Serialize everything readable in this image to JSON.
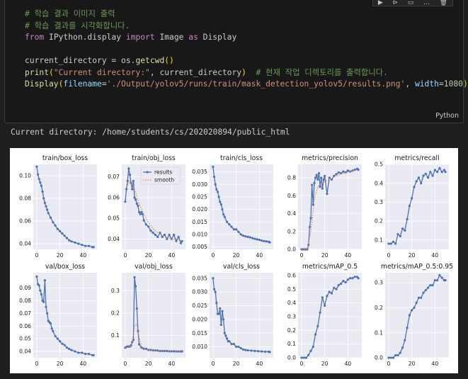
{
  "toolbar": {
    "icons": [
      "run-by-line-icon",
      "run-below-icon",
      "split-cell-icon",
      "more-icon",
      "delete-icon"
    ],
    "glyphs": [
      "▶",
      "⊳",
      "▭",
      "…",
      "🗑"
    ]
  },
  "cell": {
    "language": "Python",
    "code": {
      "l1": "# 학습 결과 이미지 출력",
      "l2": "# 학습 결과를 시각화합니다.",
      "l3": {
        "kw1": "from",
        "mod": " IPython.display ",
        "kw2": "import",
        "name1": " Image ",
        "kw3": "as",
        "name2": " Display"
      },
      "l5": {
        "a": "current_directory = os.",
        "fn": "getcwd",
        "p": "()"
      },
      "l6": {
        "fn": "print",
        "open": "(",
        "str": "\"Current directory:\"",
        "mid": ", current_directory",
        "close": ")",
        "sp": "  ",
        "com": "# 현재 작업 디렉토리를 출력합니다."
      },
      "l7": {
        "fn": "Display",
        "open": "(",
        "k1": "filename",
        "eq1": "=",
        "str": "'./Output/yolov5/runs/train/mask_detection_yolov5/results.png'",
        "comma": ", ",
        "k2": "width",
        "eq2": "=",
        "num": "1080",
        "close": ")"
      }
    }
  },
  "output": {
    "text": "Current directory: /home/students/cs/202020894/public_html"
  },
  "results_figure": {
    "colors": {
      "results": "#4c72b0",
      "smooth": "#dd8452",
      "grid": "#ffffff",
      "panel": "#eaeaf2"
    },
    "legend": {
      "results": "results",
      "smooth": "smooth"
    },
    "chart_data": [
      {
        "type": "line",
        "title": "train/box_loss",
        "ylim": [
          0.035,
          0.11
        ],
        "yticks": [
          0.04,
          0.06,
          0.08,
          0.1
        ],
        "series": [
          {
            "name": "results",
            "x": [
              0,
              1,
              2,
              3,
              4,
              5,
              6,
              7,
              8,
              9,
              10,
              12,
              14,
              16,
              18,
              20,
              22,
              24,
              26,
              28,
              30,
              33,
              36,
              39,
              42,
              45,
              48,
              49
            ],
            "values": [
              0.108,
              0.101,
              0.097,
              0.094,
              0.091,
              0.086,
              0.08,
              0.076,
              0.073,
              0.07,
              0.067,
              0.063,
              0.059,
              0.056,
              0.053,
              0.051,
              0.049,
              0.047,
              0.045,
              0.043,
              0.042,
              0.041,
              0.04,
              0.039,
              0.038,
              0.038,
              0.037,
              0.037
            ]
          }
        ]
      },
      {
        "type": "line",
        "title": "train/obj_loss",
        "ylim": [
          0.035,
          0.076
        ],
        "yticks": [
          0.04,
          0.05,
          0.06,
          0.07
        ],
        "series": [
          {
            "name": "results",
            "x": [
              0,
              1,
              2,
              3,
              4,
              5,
              6,
              7,
              8,
              9,
              10,
              11,
              12,
              13,
              14,
              15,
              16,
              18,
              20,
              22,
              24,
              26,
              28,
              30,
              32,
              34,
              36,
              38,
              40,
              42,
              44,
              46,
              48,
              49
            ],
            "values": [
              0.058,
              0.064,
              0.068,
              0.074,
              0.071,
              0.067,
              0.064,
              0.068,
              0.06,
              0.059,
              0.057,
              0.056,
              0.053,
              0.052,
              0.053,
              0.052,
              0.049,
              0.047,
              0.046,
              0.044,
              0.043,
              0.042,
              0.041,
              0.043,
              0.041,
              0.042,
              0.04,
              0.042,
              0.04,
              0.042,
              0.039,
              0.041,
              0.038,
              0.039
            ]
          },
          {
            "name": "smooth",
            "x": [
              0,
              4,
              8,
              12,
              16,
              20,
              24,
              28,
              32,
              36,
              40,
              44,
              49
            ],
            "values": [
              0.064,
              0.068,
              0.064,
              0.057,
              0.052,
              0.048,
              0.045,
              0.043,
              0.042,
              0.041,
              0.04,
              0.04,
              0.039
            ]
          }
        ]
      },
      {
        "type": "line",
        "title": "train/cls_loss",
        "ylim": [
          0.004,
          0.038
        ],
        "yticks": [
          0.005,
          0.01,
          0.015,
          0.02,
          0.025,
          0.03,
          0.035
        ],
        "series": [
          {
            "name": "results",
            "x": [
              0,
              1,
              2,
              3,
              4,
              5,
              6,
              7,
              8,
              9,
              10,
              12,
              14,
              16,
              18,
              20,
              22,
              24,
              26,
              28,
              30,
              32,
              34,
              36,
              38,
              40,
              42,
              44,
              46,
              48,
              49
            ],
            "values": [
              0.037,
              0.033,
              0.03,
              0.028,
              0.027,
              0.025,
              0.023,
              0.022,
              0.02,
              0.018,
              0.017,
              0.015,
              0.014,
              0.013,
              0.012,
              0.012,
              0.011,
              0.01,
              0.0095,
              0.0092,
              0.009,
              0.0088,
              0.0085,
              0.0082,
              0.008,
              0.0078,
              0.0075,
              0.0073,
              0.0072,
              0.007,
              0.0068
            ]
          }
        ]
      },
      {
        "type": "line",
        "title": "metrics/precision",
        "ylim": [
          0,
          0.95
        ],
        "yticks": [
          0.0,
          0.2,
          0.4,
          0.6,
          0.8
        ],
        "series": [
          {
            "name": "results",
            "x": [
              0,
              1,
              2,
              3,
              4,
              5,
              6,
              7,
              8,
              9,
              10,
              11,
              12,
              13,
              14,
              15,
              16,
              17,
              18,
              19,
              20,
              22,
              24,
              26,
              28,
              30,
              32,
              34,
              36,
              38,
              40,
              42,
              44,
              46,
              48,
              49
            ],
            "values": [
              0.0,
              0.0,
              0.0,
              0.0,
              0.0,
              0.0,
              0.05,
              0.25,
              0.35,
              0.72,
              0.5,
              0.74,
              0.8,
              0.83,
              0.78,
              0.85,
              0.7,
              0.8,
              0.68,
              0.78,
              0.82,
              0.62,
              0.8,
              0.78,
              0.82,
              0.84,
              0.86,
              0.85,
              0.87,
              0.86,
              0.88,
              0.87,
              0.88,
              0.89,
              0.9,
              0.89
            ]
          },
          {
            "name": "smooth",
            "x": [
              0,
              5,
              8,
              11,
              14,
              18,
              24,
              30,
              36,
              42,
              49
            ],
            "values": [
              0.0,
              0.0,
              0.2,
              0.55,
              0.7,
              0.75,
              0.78,
              0.82,
              0.85,
              0.87,
              0.89
            ]
          }
        ]
      },
      {
        "type": "line",
        "title": "metrics/recall",
        "ylim": [
          0.05,
          0.5
        ],
        "yticks": [
          0.1,
          0.2,
          0.3,
          0.4,
          0.5
        ],
        "series": [
          {
            "name": "results",
            "x": [
              0,
              2,
              4,
              6,
              8,
              10,
              12,
              14,
              16,
              18,
              20,
              22,
              24,
              26,
              28,
              30,
              32,
              34,
              36,
              38,
              40,
              42,
              44,
              46,
              48,
              49
            ],
            "values": [
              0.08,
              0.08,
              0.09,
              0.08,
              0.13,
              0.12,
              0.16,
              0.15,
              0.21,
              0.28,
              0.32,
              0.38,
              0.41,
              0.43,
              0.4,
              0.44,
              0.45,
              0.43,
              0.46,
              0.44,
              0.47,
              0.46,
              0.48,
              0.46,
              0.47,
              0.46
            ]
          }
        ]
      },
      {
        "type": "line",
        "title": "val/box_loss",
        "ylim": [
          0.035,
          0.102
        ],
        "yticks": [
          0.04,
          0.05,
          0.06,
          0.07,
          0.08,
          0.09
        ],
        "series": [
          {
            "name": "results",
            "x": [
              0,
              1,
              2,
              3,
              4,
              5,
              6,
              7,
              8,
              9,
              10,
              11,
              12,
              13,
              14,
              16,
              18,
              20,
              22,
              24,
              26,
              28,
              30,
              33,
              36,
              39,
              42,
              45,
              48,
              49
            ],
            "values": [
              0.099,
              0.093,
              0.092,
              0.088,
              0.085,
              0.08,
              0.079,
              0.096,
              0.075,
              0.07,
              0.064,
              0.063,
              0.062,
              0.058,
              0.056,
              0.052,
              0.05,
              0.048,
              0.046,
              0.045,
              0.043,
              0.042,
              0.041,
              0.04,
              0.039,
              0.039,
              0.038,
              0.038,
              0.037,
              0.037
            ]
          }
        ]
      },
      {
        "type": "line",
        "title": "val/obj_loss",
        "ylim": [
          0.0,
          0.38
        ],
        "yticks": [
          0.1,
          0.2,
          0.3
        ],
        "series": [
          {
            "name": "results",
            "x": [
              0,
              1,
              2,
              3,
              4,
              5,
              6,
              7,
              8,
              9,
              10,
              11,
              12,
              14,
              16,
              18,
              20,
              22,
              24,
              26,
              28,
              30,
              32,
              34,
              36,
              38,
              40,
              42,
              44,
              46,
              48,
              49
            ],
            "values": [
              0.045,
              0.048,
              0.05,
              0.05,
              0.05,
              0.055,
              0.07,
              0.08,
              0.36,
              0.32,
              0.22,
              0.12,
              0.06,
              0.045,
              0.04,
              0.04,
              0.035,
              0.035,
              0.033,
              0.033,
              0.032,
              0.03,
              0.03,
              0.03,
              0.03,
              0.029,
              0.029,
              0.029,
              0.028,
              0.028,
              0.028,
              0.028
            ]
          },
          {
            "name": "smooth",
            "x": [
              0,
              4,
              6,
              8,
              9,
              10,
              12,
              14,
              18,
              24,
              30,
              40,
              49
            ],
            "values": [
              0.045,
              0.05,
              0.07,
              0.14,
              0.15,
              0.15,
              0.09,
              0.05,
              0.038,
              0.033,
              0.03,
              0.029,
              0.028
            ]
          }
        ]
      },
      {
        "type": "line",
        "title": "val/cls_loss",
        "ylim": [
          0.006,
          0.037
        ],
        "yticks": [
          0.01,
          0.015,
          0.02,
          0.025,
          0.03,
          0.035
        ],
        "series": [
          {
            "name": "results",
            "x": [
              0,
              1,
              2,
              3,
              4,
              5,
              6,
              7,
              8,
              9,
              10,
              11,
              12,
              13,
              14,
              16,
              18,
              20,
              22,
              24,
              26,
              28,
              30,
              33,
              36,
              39,
              42,
              45,
              48,
              49
            ],
            "values": [
              0.035,
              0.031,
              0.03,
              0.026,
              0.022,
              0.022,
              0.024,
              0.018,
              0.023,
              0.02,
              0.015,
              0.014,
              0.013,
              0.012,
              0.012,
              0.011,
              0.011,
              0.01,
              0.01,
              0.0095,
              0.009,
              0.0088,
              0.0087,
              0.0086,
              0.0085,
              0.0084,
              0.0083,
              0.0082,
              0.0082,
              0.0081
            ]
          }
        ]
      },
      {
        "type": "line",
        "title": "metrics/mAP_0.5",
        "ylim": [
          0,
          0.62
        ],
        "yticks": [
          0.0,
          0.1,
          0.2,
          0.3,
          0.4,
          0.5,
          0.6
        ],
        "series": [
          {
            "name": "results",
            "x": [
              0,
              2,
              4,
              6,
              8,
              10,
              12,
              14,
              16,
              18,
              20,
              22,
              24,
              26,
              28,
              30,
              32,
              34,
              36,
              38,
              40,
              42,
              44,
              46,
              48,
              49
            ],
            "values": [
              0.0,
              0.0,
              0.0,
              0.02,
              0.05,
              0.08,
              0.17,
              0.23,
              0.33,
              0.44,
              0.38,
              0.45,
              0.48,
              0.47,
              0.51,
              0.5,
              0.53,
              0.54,
              0.56,
              0.55,
              0.57,
              0.58,
              0.58,
              0.59,
              0.59,
              0.58
            ]
          }
        ]
      },
      {
        "type": "line",
        "title": "metrics/mAP_0.5:0.95",
        "ylim": [
          0,
          0.34
        ],
        "yticks": [
          0.0,
          0.1,
          0.2,
          0.3
        ],
        "series": [
          {
            "name": "results",
            "x": [
              0,
              2,
              4,
              6,
              8,
              10,
              12,
              14,
              16,
              18,
              20,
              22,
              24,
              26,
              28,
              30,
              32,
              34,
              36,
              38,
              40,
              42,
              44,
              46,
              48,
              49
            ],
            "values": [
              0.0,
              0.0,
              0.0,
              0.01,
              0.01,
              0.02,
              0.04,
              0.07,
              0.12,
              0.17,
              0.19,
              0.2,
              0.22,
              0.24,
              0.24,
              0.26,
              0.27,
              0.28,
              0.29,
              0.29,
              0.31,
              0.31,
              0.33,
              0.32,
              0.31,
              0.31
            ]
          }
        ]
      }
    ],
    "xticks": [
      0,
      20,
      40
    ],
    "xlim": [
      -3,
      52
    ]
  }
}
